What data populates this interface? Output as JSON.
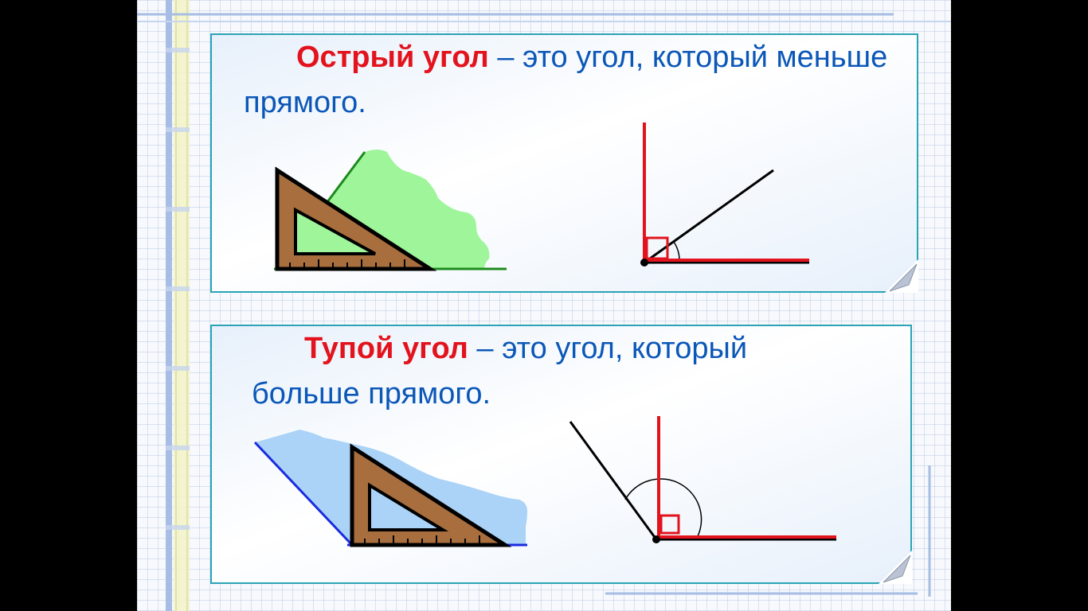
{
  "acute": {
    "term": "Острый угол",
    "dash": "–",
    "text": " это угол, который меньше прямого."
  },
  "obtuse": {
    "term": "Тупой угол",
    "dash": "–",
    "text": " это угол, который больше прямого."
  },
  "colors": {
    "term": "#e3131d",
    "text": "#0b57b8",
    "card_border": "#2aa4b6",
    "acute_fill": "#9ef59a",
    "acute_edge": "#1d8a1d",
    "obtuse_fill": "#aad3f7",
    "obtuse_edge": "#1a2be0",
    "right_angle": "#e3131d",
    "ruler_wood": "#a86e3e"
  }
}
